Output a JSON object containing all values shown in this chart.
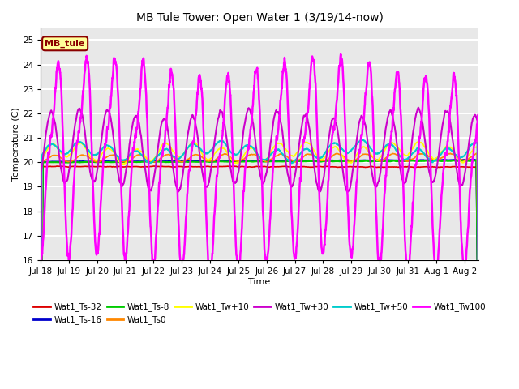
{
  "title": "MB Tule Tower: Open Water 1 (3/19/14-now)",
  "xlabel": "Time",
  "ylabel": "Temperature (C)",
  "ylim": [
    16.0,
    25.5
  ],
  "yticks": [
    16,
    17,
    18,
    19,
    20,
    21,
    22,
    23,
    24,
    25
  ],
  "date_labels": [
    "Jul 18",
    "Jul 19",
    "Jul 20",
    "Jul 21",
    "Jul 22",
    "Jul 23",
    "Jul 24",
    "Jul 25",
    "Jul 26",
    "Jul 27",
    "Jul 28",
    "Jul 29",
    "Jul 30",
    "Jul 31",
    "Aug 1",
    "Aug 2"
  ],
  "series_order": [
    "Wat1_Ts-32",
    "Wat1_Ts-16",
    "Wat1_Ts-8",
    "Wat1_Ts0",
    "Wat1_Tw+10",
    "Wat1_Tw+30",
    "Wat1_Tw+50",
    "Wat1_Tw100"
  ],
  "series": {
    "Wat1_Ts-32": {
      "color": "#dd0000",
      "linewidth": 1.2,
      "zorder": 3
    },
    "Wat1_Ts-16": {
      "color": "#0000cc",
      "linewidth": 1.5,
      "zorder": 3
    },
    "Wat1_Ts-8": {
      "color": "#00cc00",
      "linewidth": 1.5,
      "zorder": 3
    },
    "Wat1_Ts0": {
      "color": "#ff8800",
      "linewidth": 1.2,
      "zorder": 3
    },
    "Wat1_Tw+10": {
      "color": "#ffff00",
      "linewidth": 1.2,
      "zorder": 3
    },
    "Wat1_Tw+30": {
      "color": "#cc00cc",
      "linewidth": 1.5,
      "zorder": 4
    },
    "Wat1_Tw+50": {
      "color": "#00cccc",
      "linewidth": 1.5,
      "zorder": 3
    },
    "Wat1_Tw100": {
      "color": "#ff00ff",
      "linewidth": 1.8,
      "zorder": 5
    }
  },
  "annotation_label": "MB_tule",
  "annotation_color": "#8b0000",
  "annotation_bg": "#ffff99",
  "background_color": "#e8e8e8",
  "grid_color": "#ffffff",
  "num_days": 15.5,
  "points_per_day": 144,
  "figsize": [
    6.4,
    4.8
  ],
  "dpi": 100
}
